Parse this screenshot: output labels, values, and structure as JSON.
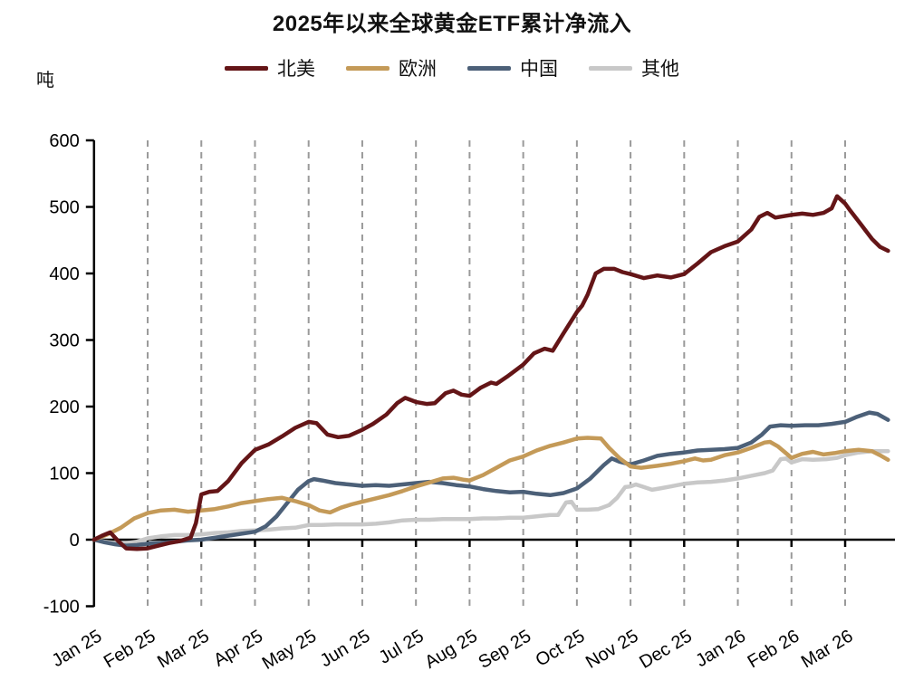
{
  "chart": {
    "title": "2025年以来全球黄金ETF累计净流入",
    "unit": "吨"
  },
  "chart_data": {
    "type": "line",
    "title": "2025年以来全球黄金ETF累计净流入",
    "x_axis": {
      "labels": [
        "Jan 25",
        "Feb 25",
        "Mar 25",
        "Apr 25",
        "May 25",
        "Jun 25",
        "Jul 25",
        "Aug 25",
        "Sep 25",
        "Oct 25",
        "Nov 25",
        "Dec 25",
        "Jan 26",
        "Feb 26",
        "Mar 26"
      ],
      "grid": "vertical-dashed-from-second-month"
    },
    "y_axis": {
      "label": "吨",
      "min": -100,
      "max": 600,
      "ticks": [
        600,
        500,
        400,
        300,
        200,
        100,
        0,
        -100
      ]
    },
    "legend_position": "top-center",
    "series": [
      {
        "name": "北美",
        "color": "#641517",
        "points": [
          [
            0,
            0
          ],
          [
            0.15,
            6
          ],
          [
            0.3,
            11
          ],
          [
            0.45,
            -2
          ],
          [
            0.6,
            -13
          ],
          [
            0.8,
            -14
          ],
          [
            1.0,
            -13
          ],
          [
            1.2,
            -9
          ],
          [
            1.4,
            -5
          ],
          [
            1.6,
            -2
          ],
          [
            1.8,
            3
          ],
          [
            1.9,
            25
          ],
          [
            2.0,
            68
          ],
          [
            2.15,
            72
          ],
          [
            2.3,
            73
          ],
          [
            2.5,
            88
          ],
          [
            2.75,
            115
          ],
          [
            3.0,
            135
          ],
          [
            3.25,
            143
          ],
          [
            3.5,
            155
          ],
          [
            3.75,
            168
          ],
          [
            4.0,
            177
          ],
          [
            4.15,
            175
          ],
          [
            4.35,
            158
          ],
          [
            4.55,
            154
          ],
          [
            4.75,
            156
          ],
          [
            5.0,
            165
          ],
          [
            5.2,
            174
          ],
          [
            5.45,
            188
          ],
          [
            5.65,
            205
          ],
          [
            5.8,
            213
          ],
          [
            6.0,
            207
          ],
          [
            6.2,
            204
          ],
          [
            6.35,
            205
          ],
          [
            6.55,
            220
          ],
          [
            6.7,
            224
          ],
          [
            6.85,
            218
          ],
          [
            7.0,
            216
          ],
          [
            7.2,
            228
          ],
          [
            7.4,
            236
          ],
          [
            7.5,
            234
          ],
          [
            7.7,
            245
          ],
          [
            8.0,
            263
          ],
          [
            8.2,
            280
          ],
          [
            8.4,
            287
          ],
          [
            8.55,
            284
          ],
          [
            8.75,
            310
          ],
          [
            9.0,
            342
          ],
          [
            9.1,
            352
          ],
          [
            9.2,
            368
          ],
          [
            9.35,
            400
          ],
          [
            9.5,
            407
          ],
          [
            9.7,
            407
          ],
          [
            9.85,
            402
          ],
          [
            10.0,
            399
          ],
          [
            10.25,
            393
          ],
          [
            10.5,
            397
          ],
          [
            10.75,
            394
          ],
          [
            11.0,
            399
          ],
          [
            11.25,
            415
          ],
          [
            11.5,
            432
          ],
          [
            11.75,
            441
          ],
          [
            12.0,
            448
          ],
          [
            12.25,
            466
          ],
          [
            12.4,
            485
          ],
          [
            12.55,
            491
          ],
          [
            12.7,
            484
          ],
          [
            12.85,
            486
          ],
          [
            13.0,
            488
          ],
          [
            13.2,
            490
          ],
          [
            13.4,
            488
          ],
          [
            13.6,
            491
          ],
          [
            13.75,
            498
          ],
          [
            13.85,
            516
          ],
          [
            14.0,
            505
          ],
          [
            14.1,
            494
          ],
          [
            14.3,
            473
          ],
          [
            14.5,
            452
          ],
          [
            14.65,
            440
          ],
          [
            14.8,
            434
          ]
        ]
      },
      {
        "name": "欧洲",
        "color": "#C49A58",
        "points": [
          [
            0,
            0
          ],
          [
            0.25,
            8
          ],
          [
            0.5,
            18
          ],
          [
            0.75,
            32
          ],
          [
            1.0,
            40
          ],
          [
            1.25,
            44
          ],
          [
            1.5,
            45
          ],
          [
            1.75,
            42
          ],
          [
            2.0,
            44
          ],
          [
            2.25,
            46
          ],
          [
            2.5,
            50
          ],
          [
            2.75,
            55
          ],
          [
            3.0,
            58
          ],
          [
            3.25,
            61
          ],
          [
            3.5,
            63
          ],
          [
            3.75,
            58
          ],
          [
            4.0,
            52
          ],
          [
            4.2,
            44
          ],
          [
            4.4,
            41
          ],
          [
            4.6,
            48
          ],
          [
            4.8,
            53
          ],
          [
            5.0,
            57
          ],
          [
            5.25,
            62
          ],
          [
            5.5,
            67
          ],
          [
            5.75,
            73
          ],
          [
            6.0,
            80
          ],
          [
            6.25,
            86
          ],
          [
            6.5,
            92
          ],
          [
            6.7,
            93
          ],
          [
            6.9,
            90
          ],
          [
            7.0,
            89
          ],
          [
            7.25,
            97
          ],
          [
            7.5,
            108
          ],
          [
            7.75,
            119
          ],
          [
            8.0,
            125
          ],
          [
            8.25,
            134
          ],
          [
            8.5,
            141
          ],
          [
            8.75,
            146
          ],
          [
            9.0,
            152
          ],
          [
            9.2,
            153
          ],
          [
            9.45,
            152
          ],
          [
            9.6,
            138
          ],
          [
            9.8,
            122
          ],
          [
            10.0,
            110
          ],
          [
            10.2,
            108
          ],
          [
            10.5,
            111
          ],
          [
            10.75,
            114
          ],
          [
            11.0,
            118
          ],
          [
            11.2,
            122
          ],
          [
            11.35,
            119
          ],
          [
            11.5,
            120
          ],
          [
            11.75,
            127
          ],
          [
            12.0,
            131
          ],
          [
            12.25,
            138
          ],
          [
            12.5,
            146
          ],
          [
            12.6,
            147
          ],
          [
            12.75,
            140
          ],
          [
            13.0,
            123
          ],
          [
            13.2,
            129
          ],
          [
            13.4,
            132
          ],
          [
            13.6,
            128
          ],
          [
            13.8,
            130
          ],
          [
            14.0,
            133
          ],
          [
            14.25,
            135
          ],
          [
            14.5,
            133
          ],
          [
            14.65,
            127
          ],
          [
            14.8,
            120
          ]
        ]
      },
      {
        "name": "中国",
        "color": "#4C6078",
        "points": [
          [
            0,
            0
          ],
          [
            0.2,
            -4
          ],
          [
            0.4,
            -7
          ],
          [
            0.6,
            -9
          ],
          [
            0.8,
            -8
          ],
          [
            1.0,
            -6
          ],
          [
            1.25,
            -5
          ],
          [
            1.5,
            -3
          ],
          [
            1.75,
            -1
          ],
          [
            2.0,
            0
          ],
          [
            2.25,
            3
          ],
          [
            2.5,
            6
          ],
          [
            2.75,
            9
          ],
          [
            3.0,
            12
          ],
          [
            3.2,
            20
          ],
          [
            3.4,
            35
          ],
          [
            3.6,
            55
          ],
          [
            3.8,
            75
          ],
          [
            4.0,
            88
          ],
          [
            4.1,
            91
          ],
          [
            4.25,
            89
          ],
          [
            4.5,
            85
          ],
          [
            4.75,
            83
          ],
          [
            5.0,
            81
          ],
          [
            5.25,
            82
          ],
          [
            5.5,
            81
          ],
          [
            5.75,
            83
          ],
          [
            6.0,
            85
          ],
          [
            6.25,
            87
          ],
          [
            6.5,
            85
          ],
          [
            6.75,
            82
          ],
          [
            7.0,
            80
          ],
          [
            7.25,
            76
          ],
          [
            7.5,
            73
          ],
          [
            7.75,
            71
          ],
          [
            8.0,
            72
          ],
          [
            8.25,
            69
          ],
          [
            8.5,
            67
          ],
          [
            8.75,
            70
          ],
          [
            9.0,
            77
          ],
          [
            9.25,
            92
          ],
          [
            9.5,
            112
          ],
          [
            9.65,
            122
          ],
          [
            9.8,
            117
          ],
          [
            10.0,
            113
          ],
          [
            10.25,
            119
          ],
          [
            10.5,
            126
          ],
          [
            10.75,
            129
          ],
          [
            11.0,
            131
          ],
          [
            11.25,
            134
          ],
          [
            11.5,
            135
          ],
          [
            11.75,
            136
          ],
          [
            12.0,
            138
          ],
          [
            12.25,
            146
          ],
          [
            12.45,
            158
          ],
          [
            12.6,
            170
          ],
          [
            12.8,
            172
          ],
          [
            13.0,
            171
          ],
          [
            13.25,
            172
          ],
          [
            13.5,
            172
          ],
          [
            13.75,
            174
          ],
          [
            14.0,
            177
          ],
          [
            14.2,
            184
          ],
          [
            14.45,
            191
          ],
          [
            14.6,
            189
          ],
          [
            14.8,
            180
          ]
        ]
      },
      {
        "name": "其他",
        "color": "#C8C8C8",
        "points": [
          [
            0,
            0
          ],
          [
            0.2,
            -3
          ],
          [
            0.4,
            -5
          ],
          [
            0.6,
            -5
          ],
          [
            0.8,
            -3
          ],
          [
            1.0,
            2
          ],
          [
            1.25,
            5
          ],
          [
            1.5,
            7
          ],
          [
            1.75,
            7
          ],
          [
            2.0,
            8
          ],
          [
            2.25,
            10
          ],
          [
            2.5,
            11
          ],
          [
            2.75,
            13
          ],
          [
            3.0,
            14
          ],
          [
            3.25,
            15
          ],
          [
            3.5,
            17
          ],
          [
            3.75,
            18
          ],
          [
            4.0,
            22
          ],
          [
            4.25,
            22
          ],
          [
            4.5,
            23
          ],
          [
            4.75,
            23
          ],
          [
            5.0,
            23
          ],
          [
            5.25,
            24
          ],
          [
            5.5,
            26
          ],
          [
            5.75,
            29
          ],
          [
            6.0,
            30
          ],
          [
            6.25,
            30
          ],
          [
            6.5,
            31
          ],
          [
            6.75,
            31
          ],
          [
            7.0,
            31
          ],
          [
            7.25,
            32
          ],
          [
            7.5,
            32
          ],
          [
            7.75,
            33
          ],
          [
            8.0,
            33
          ],
          [
            8.25,
            35
          ],
          [
            8.5,
            37
          ],
          [
            8.65,
            37
          ],
          [
            8.8,
            56
          ],
          [
            8.9,
            57
          ],
          [
            9.0,
            45
          ],
          [
            9.2,
            45
          ],
          [
            9.4,
            46
          ],
          [
            9.6,
            52
          ],
          [
            9.75,
            63
          ],
          [
            9.9,
            79
          ],
          [
            10.0,
            80
          ],
          [
            10.1,
            83
          ],
          [
            10.25,
            79
          ],
          [
            10.4,
            75
          ],
          [
            10.55,
            77
          ],
          [
            10.75,
            80
          ],
          [
            11.0,
            84
          ],
          [
            11.25,
            86
          ],
          [
            11.5,
            87
          ],
          [
            11.75,
            89
          ],
          [
            12.0,
            92
          ],
          [
            12.25,
            96
          ],
          [
            12.5,
            100
          ],
          [
            12.65,
            104
          ],
          [
            12.8,
            121
          ],
          [
            12.9,
            122
          ],
          [
            13.0,
            116
          ],
          [
            13.2,
            121
          ],
          [
            13.4,
            120
          ],
          [
            13.65,
            121
          ],
          [
            13.85,
            123
          ],
          [
            14.0,
            127
          ],
          [
            14.25,
            131
          ],
          [
            14.5,
            133
          ],
          [
            14.8,
            133
          ]
        ]
      }
    ]
  }
}
